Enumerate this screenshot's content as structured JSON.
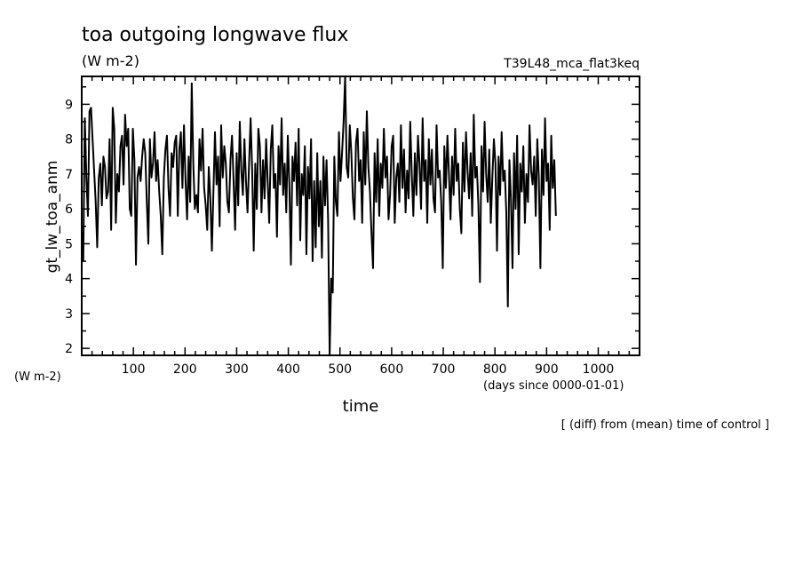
{
  "chart_data": {
    "type": "line",
    "title": "toa outgoing longwave flux",
    "title_units": "(W m-2)",
    "run_label": "T39L48_mca_flat3keq",
    "ylabel": "gt_lw_toa_anm",
    "y_units": "(W m-2)",
    "xlabel": "time",
    "x_units": "(days since 0000-01-01)",
    "note": "[ (diff) from (mean) time of control ]",
    "xlim": [
      0,
      1080
    ],
    "ylim": [
      1.8,
      9.8
    ],
    "x_ticks": [
      100,
      200,
      300,
      400,
      500,
      600,
      700,
      800,
      900,
      1000
    ],
    "y_ticks": [
      2,
      3,
      4,
      5,
      6,
      7,
      8,
      9
    ],
    "grid": false,
    "x_step_days": 3,
    "series": [
      {
        "values": [
          5.4,
          4.5,
          8.6,
          6.9,
          5.8,
          8.8,
          8.9,
          8.0,
          7.1,
          6.2,
          4.9,
          6.9,
          7.3,
          6.1,
          7.5,
          7.2,
          6.3,
          6.5,
          8.0,
          5.4,
          8.9,
          8.3,
          5.6,
          7.0,
          6.5,
          7.8,
          8.1,
          6.7,
          8.7,
          7.8,
          8.3,
          6.0,
          5.8,
          8.3,
          7.4,
          4.4,
          6.9,
          7.2,
          6.8,
          7.5,
          8.0,
          7.6,
          6.2,
          5.0,
          8.0,
          6.9,
          7.3,
          8.2,
          6.8,
          7.4,
          6.5,
          5.8,
          4.7,
          6.9,
          7.7,
          8.1,
          6.6,
          5.8,
          7.6,
          7.2,
          7.9,
          8.1,
          5.8,
          7.7,
          8.2,
          6.6,
          8.4,
          6.8,
          5.7,
          7.5,
          6.2,
          9.6,
          7.3,
          6.0,
          6.4,
          5.9,
          8.0,
          7.1,
          8.3,
          6.6,
          6.1,
          5.4,
          7.2,
          6.3,
          4.8,
          6.5,
          8.2,
          6.7,
          7.5,
          5.5,
          8.4,
          6.9,
          7.8,
          7.3,
          6.2,
          5.9,
          7.4,
          8.1,
          6.8,
          5.4,
          7.6,
          6.1,
          8.5,
          7.1,
          6.4,
          8.0,
          6.8,
          5.9,
          7.3,
          8.6,
          7.1,
          4.8,
          7.3,
          6.0,
          8.3,
          7.8,
          5.9,
          7.4,
          6.3,
          8.0,
          6.8,
          5.6,
          7.7,
          8.4,
          6.6,
          7.0,
          5.2,
          7.8,
          6.7,
          8.6,
          6.4,
          7.3,
          5.9,
          8.1,
          6.7,
          4.4,
          7.5,
          6.8,
          7.9,
          6.1,
          8.3,
          5.1,
          7.0,
          6.4,
          7.8,
          4.7,
          7.2,
          6.3,
          8.0,
          4.5,
          6.8,
          4.9,
          7.6,
          5.5,
          6.8,
          4.6,
          7.5,
          6.1,
          7.4,
          5.7,
          1.8,
          4.0,
          3.6,
          7.5,
          6.2,
          5.8,
          8.2,
          6.8,
          7.6,
          8.5,
          9.8,
          7.2,
          6.9,
          8.4,
          7.6,
          6.3,
          5.7,
          7.9,
          8.3,
          6.8,
          7.4,
          5.6,
          8.2,
          6.7,
          8.8,
          7.2,
          6.5,
          5.3,
          4.3,
          7.6,
          6.2,
          8.0,
          5.8,
          7.3,
          6.6,
          8.3,
          6.9,
          7.5,
          5.7,
          6.4,
          7.8,
          8.1,
          5.6,
          6.9,
          7.3,
          6.2,
          8.4,
          6.6,
          7.7,
          5.9,
          7.1,
          6.3,
          8.5,
          7.0,
          5.8,
          7.6,
          6.4,
          8.1,
          7.3,
          6.0,
          8.6,
          6.8,
          7.4,
          5.6,
          8.0,
          6.7,
          7.7,
          6.3,
          5.9,
          8.4,
          6.9,
          7.1,
          6.2,
          4.3,
          7.8,
          6.6,
          8.1,
          7.0,
          5.7,
          7.5,
          6.4,
          8.3,
          6.8,
          7.3,
          6.0,
          5.3,
          7.9,
          6.5,
          8.2,
          7.1,
          6.3,
          7.6,
          5.8,
          8.7,
          6.9,
          7.2,
          6.1,
          3.9,
          7.8,
          6.5,
          8.5,
          7.0,
          6.2,
          7.7,
          5.6,
          6.9,
          8.0,
          7.3,
          4.8,
          7.5,
          6.4,
          8.2,
          6.8,
          7.1,
          5.9,
          3.2,
          7.4,
          6.3,
          4.3,
          7.6,
          6.0,
          8.1,
          4.7,
          7.3,
          6.5,
          7.8,
          5.6,
          7.0,
          6.2,
          8.4,
          7.1,
          6.7,
          7.5,
          5.8,
          8.0,
          6.9,
          4.3,
          7.7,
          6.4,
          8.6,
          6.8,
          7.3,
          5.4,
          8.1,
          6.6,
          7.4,
          5.8
        ]
      }
    ]
  }
}
